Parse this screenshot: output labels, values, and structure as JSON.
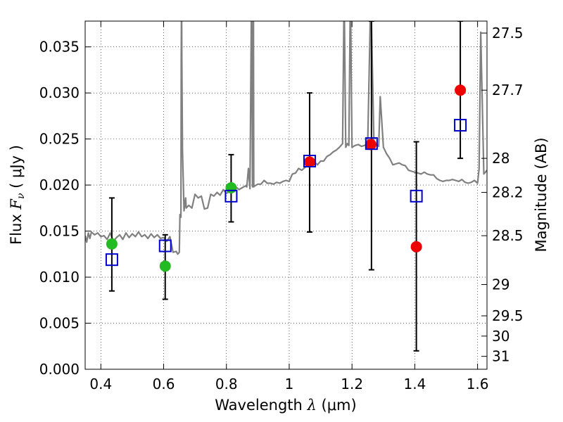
{
  "chart_data": {
    "type": "scatter",
    "xlabel": {
      "prefix": "Wavelength  ",
      "symbol": "λ",
      "unit": " (μm)"
    },
    "ylabel": {
      "prefix": "Flux  ",
      "symbol": "F",
      "subscript": "ν",
      "unit": "  ( μJy )"
    },
    "y2label": "Magnitude (AB)",
    "xlim": [
      0.35,
      1.63
    ],
    "ylim": [
      0.0,
      0.0378
    ],
    "grid": true,
    "x_ticks": [
      {
        "value": 0.4,
        "label": "0.4"
      },
      {
        "value": 0.6,
        "label": "0.6"
      },
      {
        "value": 0.8,
        "label": "0.8"
      },
      {
        "value": 1.0,
        "label": "1"
      },
      {
        "value": 1.2,
        "label": "1.2"
      },
      {
        "value": 1.4,
        "label": "1.4"
      },
      {
        "value": 1.6,
        "label": "1.6"
      }
    ],
    "y_ticks": [
      {
        "value": 0.0,
        "label": "0.000"
      },
      {
        "value": 0.005,
        "label": "0.005"
      },
      {
        "value": 0.01,
        "label": "0.010"
      },
      {
        "value": 0.015,
        "label": "0.015"
      },
      {
        "value": 0.02,
        "label": "0.020"
      },
      {
        "value": 0.025,
        "label": "0.025"
      },
      {
        "value": 0.03,
        "label": "0.030"
      },
      {
        "value": 0.035,
        "label": "0.035"
      }
    ],
    "y2_ticks": [
      {
        "flux": 0.0365,
        "label": "27.5"
      },
      {
        "flux": 0.0303,
        "label": "27.7"
      },
      {
        "flux": 0.0229,
        "label": "28"
      },
      {
        "flux": 0.0192,
        "label": "28.2"
      },
      {
        "flux": 0.0145,
        "label": "28.5"
      },
      {
        "flux": 0.0092,
        "label": "29"
      },
      {
        "flux": 0.0058,
        "label": "29.5"
      },
      {
        "flux": 0.0036,
        "label": "30"
      },
      {
        "flux": 0.0014,
        "label": "31"
      }
    ],
    "series": [
      {
        "kind": "model_spectrum",
        "color": "#808080",
        "x": [
          0.35,
          0.355,
          0.36,
          0.365,
          0.37,
          0.38,
          0.39,
          0.4,
          0.41,
          0.42,
          0.43,
          0.44,
          0.45,
          0.46,
          0.47,
          0.48,
          0.49,
          0.5,
          0.51,
          0.52,
          0.53,
          0.54,
          0.55,
          0.56,
          0.57,
          0.58,
          0.59,
          0.6,
          0.61,
          0.62,
          0.63,
          0.64,
          0.645,
          0.65,
          0.652,
          0.655,
          0.656,
          0.657,
          0.658,
          0.66,
          0.665,
          0.67,
          0.672,
          0.68,
          0.69,
          0.7,
          0.71,
          0.72,
          0.73,
          0.74,
          0.75,
          0.76,
          0.77,
          0.78,
          0.79,
          0.8,
          0.81,
          0.82,
          0.83,
          0.84,
          0.85,
          0.86,
          0.865,
          0.87,
          0.875,
          0.88,
          0.883,
          0.886,
          0.887,
          0.89,
          0.9,
          0.91,
          0.92,
          0.93,
          0.94,
          0.95,
          0.96,
          0.97,
          0.98,
          0.99,
          1.0,
          1.01,
          1.02,
          1.03,
          1.04,
          1.05,
          1.06,
          1.07,
          1.08,
          1.09,
          1.1,
          1.11,
          1.12,
          1.13,
          1.14,
          1.15,
          1.16,
          1.17,
          1.175,
          1.18,
          1.185,
          1.19,
          1.195,
          1.2,
          1.21,
          1.22,
          1.23,
          1.24,
          1.25,
          1.26,
          1.27,
          1.28,
          1.285,
          1.29,
          1.3,
          1.31,
          1.32,
          1.33,
          1.34,
          1.35,
          1.36,
          1.37,
          1.38,
          1.39,
          1.4,
          1.41,
          1.42,
          1.43,
          1.44,
          1.45,
          1.46,
          1.47,
          1.48,
          1.49,
          1.5,
          1.51,
          1.52,
          1.53,
          1.54,
          1.55,
          1.56,
          1.57,
          1.58,
          1.59,
          1.6,
          1.605,
          1.61,
          1.62,
          1.63
        ],
        "y": [
          0.0145,
          0.0138,
          0.0148,
          0.0142,
          0.0149,
          0.0146,
          0.0148,
          0.0144,
          0.0145,
          0.0141,
          0.0148,
          0.0139,
          0.0143,
          0.0146,
          0.0141,
          0.0148,
          0.0143,
          0.0147,
          0.0144,
          0.0149,
          0.0144,
          0.0146,
          0.0142,
          0.0147,
          0.0143,
          0.0146,
          0.0142,
          0.0143,
          0.0139,
          0.0144,
          0.0127,
          0.0128,
          0.0125,
          0.0127,
          0.0168,
          0.0165,
          0.0335,
          0.041,
          0.0335,
          0.0238,
          0.0172,
          0.0186,
          0.0175,
          0.0178,
          0.0175,
          0.019,
          0.0186,
          0.0188,
          0.0174,
          0.0175,
          0.019,
          0.0188,
          0.0192,
          0.0189,
          0.0195,
          0.0191,
          0.0193,
          0.0192,
          0.0198,
          0.0195,
          0.0197,
          0.0199,
          0.0198,
          0.0218,
          0.0196,
          0.041,
          0.0198,
          0.041,
          0.0198,
          0.0199,
          0.0201,
          0.0201,
          0.0205,
          0.0202,
          0.0202,
          0.0201,
          0.0203,
          0.0202,
          0.0204,
          0.0205,
          0.0204,
          0.0212,
          0.0213,
          0.0218,
          0.0216,
          0.0219,
          0.0222,
          0.0221,
          0.0225,
          0.0222,
          0.0226,
          0.0226,
          0.0231,
          0.0233,
          0.0236,
          0.0238,
          0.0241,
          0.0245,
          0.041,
          0.0241,
          0.0245,
          0.0243,
          0.041,
          0.0241,
          0.0243,
          0.0244,
          0.0242,
          0.0243,
          0.0245,
          0.041,
          0.0244,
          0.0244,
          0.0242,
          0.0296,
          0.0241,
          0.0234,
          0.0229,
          0.0222,
          0.0223,
          0.0224,
          0.0222,
          0.0221,
          0.0216,
          0.0215,
          0.0214,
          0.0213,
          0.0212,
          0.0214,
          0.0212,
          0.0211,
          0.0211,
          0.0207,
          0.0205,
          0.0204,
          0.0205,
          0.0205,
          0.0206,
          0.0205,
          0.0204,
          0.0206,
          0.0203,
          0.0202,
          0.0203,
          0.0205,
          0.0202,
          0.0218,
          0.0366,
          0.0212,
          0.0216
        ]
      },
      {
        "kind": "errorbars",
        "color": "#000000",
        "points": [
          {
            "x": 0.435,
            "lo": 0.0085,
            "hi": 0.0186
          },
          {
            "x": 0.605,
            "lo": 0.0076,
            "hi": 0.0146
          },
          {
            "x": 0.815,
            "lo": 0.016,
            "hi": 0.0233
          },
          {
            "x": 1.065,
            "lo": 0.0149,
            "hi": 0.03
          },
          {
            "x": 1.262,
            "lo": 0.0108,
            "hi": 0.0378
          },
          {
            "x": 1.405,
            "lo": 0.002,
            "hi": 0.0247
          },
          {
            "x": 1.545,
            "lo": 0.0229,
            "hi": 0.0378
          }
        ]
      },
      {
        "kind": "filled_circles",
        "color": "#22bb22",
        "points": [
          {
            "x": 0.435,
            "y": 0.0136
          },
          {
            "x": 0.605,
            "y": 0.0112
          },
          {
            "x": 0.815,
            "y": 0.0197
          }
        ]
      },
      {
        "kind": "filled_circles",
        "color": "#ee0000",
        "points": [
          {
            "x": 1.065,
            "y": 0.0225
          },
          {
            "x": 1.26,
            "y": 0.0244
          },
          {
            "x": 1.405,
            "y": 0.0133
          },
          {
            "x": 1.545,
            "y": 0.0303
          }
        ]
      },
      {
        "kind": "open_squares",
        "color": "#0000cc",
        "points": [
          {
            "x": 0.435,
            "y": 0.0119
          },
          {
            "x": 0.605,
            "y": 0.0134
          },
          {
            "x": 0.815,
            "y": 0.0188
          },
          {
            "x": 1.065,
            "y": 0.0226
          },
          {
            "x": 1.262,
            "y": 0.0245
          },
          {
            "x": 1.405,
            "y": 0.0188
          },
          {
            "x": 1.545,
            "y": 0.0265
          }
        ]
      }
    ]
  }
}
